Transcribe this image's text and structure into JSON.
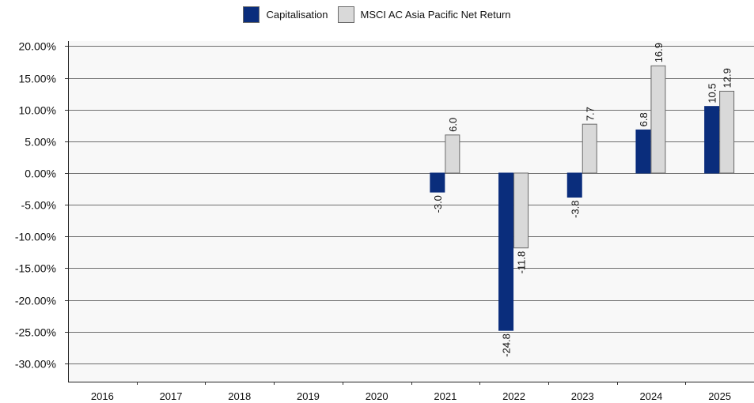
{
  "chart_data": {
    "type": "bar",
    "categories": [
      "2016",
      "2017",
      "2018",
      "2019",
      "2020",
      "2021",
      "2022",
      "2023",
      "2024",
      "2025"
    ],
    "series": [
      {
        "name": "Capitalisation",
        "color": "#0a2d7c",
        "values": [
          null,
          null,
          null,
          null,
          null,
          -3.0,
          -24.8,
          -3.8,
          6.8,
          10.5
        ]
      },
      {
        "name": "MSCI AC Asia Pacific Net Return",
        "color": "#d9d9d9",
        "values": [
          null,
          null,
          null,
          null,
          null,
          6.0,
          -11.8,
          7.7,
          16.9,
          12.9
        ]
      }
    ],
    "value_labels": {
      "Capitalisation": [
        "",
        "",
        "",
        "",
        "",
        "-3.0",
        "-24.8",
        "-3.8",
        "6.8",
        "10.5"
      ],
      "MSCI AC Asia Pacific Net Return": [
        "",
        "",
        "",
        "",
        "",
        "6.0",
        "-11.8",
        "7.7",
        "16.9",
        "12.9"
      ]
    },
    "yticks": [
      20,
      15,
      10,
      5,
      0,
      -5,
      -10,
      -15,
      -20,
      -25,
      -30
    ],
    "ytick_labels": [
      "20.00%",
      "15.00%",
      "10.00%",
      "5.00%",
      "0.00%",
      "-5.00%",
      "-10.00%",
      "-15.00%",
      "-20.00%",
      "-25.00%",
      "-30.00%"
    ],
    "ylim": [
      -32,
      21
    ],
    "grid": true,
    "legend_position": "top-center"
  }
}
